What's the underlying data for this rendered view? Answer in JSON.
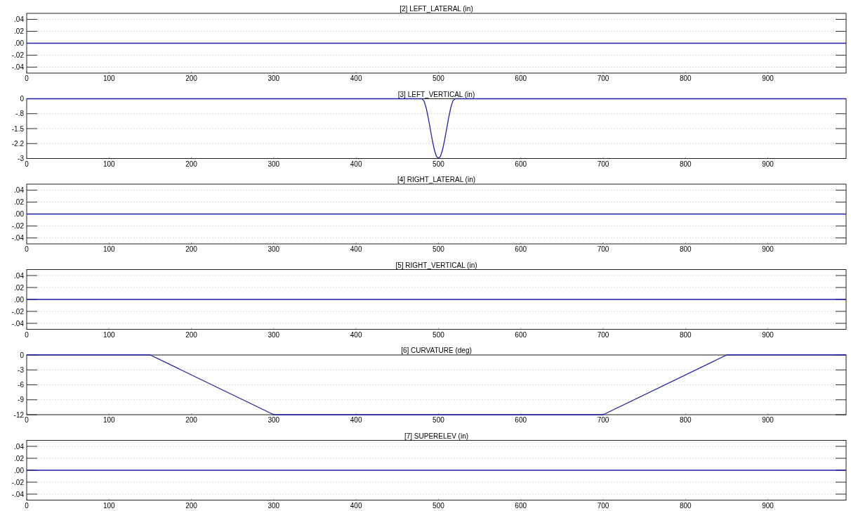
{
  "chart_data": [
    {
      "type": "line",
      "title": "[2] LEFT_LATERAL  (in)",
      "x": [
        0,
        995
      ],
      "series": [
        {
          "color": "#1f1fa8",
          "values": [
            0,
            0
          ]
        }
      ],
      "xlim": [
        0,
        995
      ],
      "xticks": [
        0,
        100,
        200,
        300,
        400,
        500,
        600,
        700,
        800,
        900
      ],
      "ylim": [
        -0.05,
        0.05
      ],
      "yticks": [
        {
          "value": -0.04,
          "label": "-.04"
        },
        {
          "value": -0.02,
          "label": "-.02"
        },
        {
          "value": 0,
          "label": ".00"
        },
        {
          "value": 0.02,
          "label": ".02"
        },
        {
          "value": 0.04,
          "label": ".04"
        }
      ],
      "grid": "y"
    },
    {
      "type": "line",
      "title": "[3] LEFT_VERTICAL  (in)",
      "x": [
        0,
        480,
        482.5,
        485,
        487.5,
        490,
        492.5,
        495,
        497.5,
        500,
        502.5,
        505,
        507.5,
        510,
        512.5,
        515,
        517.5,
        520,
        995
      ],
      "series": [
        {
          "color": "#1f1fa8",
          "values": [
            0,
            0,
            -0.11,
            -0.44,
            -0.93,
            -1.5,
            -2.07,
            -2.56,
            -2.89,
            -3,
            -2.89,
            -2.56,
            -2.07,
            -1.5,
            -0.93,
            -0.44,
            -0.11,
            0,
            0
          ]
        }
      ],
      "xlim": [
        0,
        995
      ],
      "xticks": [
        0,
        100,
        200,
        300,
        400,
        500,
        600,
        700,
        800,
        900
      ],
      "ylim": [
        -3,
        0
      ],
      "yticks": [
        -3,
        {
          "value": -2.25,
          "label": "-2.2"
        },
        -1.5,
        {
          "value": -0.75,
          "label": "-.8"
        },
        0
      ],
      "grid": "y"
    },
    {
      "type": "line",
      "title": "[4] RIGHT_LATERAL  (in)",
      "x": [
        0,
        995
      ],
      "series": [
        {
          "color": "#1f1fa8",
          "values": [
            0,
            0
          ]
        }
      ],
      "xlim": [
        0,
        995
      ],
      "xticks": [
        0,
        100,
        200,
        300,
        400,
        500,
        600,
        700,
        800,
        900
      ],
      "ylim": [
        -0.05,
        0.05
      ],
      "yticks": [
        {
          "value": -0.04,
          "label": "-.04"
        },
        {
          "value": -0.02,
          "label": "-.02"
        },
        {
          "value": 0,
          "label": ".00"
        },
        {
          "value": 0.02,
          "label": ".02"
        },
        {
          "value": 0.04,
          "label": ".04"
        }
      ],
      "grid": "y"
    },
    {
      "type": "line",
      "title": "[5] RIGHT_VERTICAL  (in)",
      "x": [
        0,
        995
      ],
      "series": [
        {
          "color": "#1f1fa8",
          "values": [
            0,
            0
          ]
        }
      ],
      "xlim": [
        0,
        995
      ],
      "xticks": [
        0,
        100,
        200,
        300,
        400,
        500,
        600,
        700,
        800,
        900
      ],
      "ylim": [
        -0.05,
        0.05
      ],
      "yticks": [
        {
          "value": -0.04,
          "label": "-.04"
        },
        {
          "value": -0.02,
          "label": "-.02"
        },
        {
          "value": 0,
          "label": ".00"
        },
        {
          "value": 0.02,
          "label": ".02"
        },
        {
          "value": 0.04,
          "label": ".04"
        }
      ],
      "grid": "y"
    },
    {
      "type": "line",
      "title": "[6] CURVATURE  (deg)",
      "x": [
        0,
        150,
        300,
        700,
        850,
        995
      ],
      "series": [
        {
          "color": "#1f1fa8",
          "values": [
            0,
            0,
            -12,
            -12,
            0,
            0
          ]
        }
      ],
      "xlim": [
        0,
        995
      ],
      "xticks": [
        0,
        100,
        200,
        300,
        400,
        500,
        600,
        700,
        800,
        900
      ],
      "ylim": [
        -12,
        0
      ],
      "yticks": [
        -12,
        -9,
        -6,
        -3,
        0
      ],
      "grid": "y"
    },
    {
      "type": "line",
      "title": "[7] SUPERELEV  (in)",
      "x": [
        0,
        995
      ],
      "series": [
        {
          "color": "#1f1fa8",
          "values": [
            0,
            0
          ]
        }
      ],
      "xlim": [
        0,
        995
      ],
      "xticks": [
        0,
        100,
        200,
        300,
        400,
        500,
        600,
        700,
        800,
        900
      ],
      "ylim": [
        -0.05,
        0.05
      ],
      "yticks": [
        {
          "value": -0.04,
          "label": "-.04"
        },
        {
          "value": -0.02,
          "label": "-.02"
        },
        {
          "value": 0,
          "label": ".00"
        },
        {
          "value": 0.02,
          "label": ".02"
        },
        {
          "value": 0.04,
          "label": ".04"
        }
      ],
      "grid": "y"
    }
  ]
}
